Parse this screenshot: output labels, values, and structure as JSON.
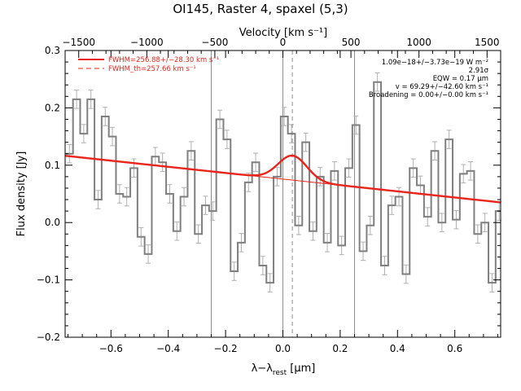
{
  "chart_data": {
    "type": "line",
    "title": "OI145, Raster 4, spaxel (5,3)",
    "xlabel": "λ-λ_rest [μm]",
    "xlabel_main": "λ−λ",
    "xlabel_sub": "rest",
    "xlabel_unit": " [μm]",
    "ylabel": "Flux density [Jy]",
    "top_axis_label": "Velocity [km s⁻¹]",
    "xlim": [
      -0.76,
      0.76
    ],
    "ylim": [
      -0.2,
      0.3
    ],
    "top_xlim": [
      -1600,
      1600
    ],
    "x_ticks": [
      -0.6,
      -0.4,
      -0.2,
      0.0,
      0.2,
      0.4,
      0.6
    ],
    "x_tick_labels": [
      "−0.6",
      "−0.4",
      "−0.2",
      "0.0",
      "0.2",
      "0.4",
      "0.6"
    ],
    "y_ticks": [
      -0.2,
      -0.1,
      0.0,
      0.1,
      0.2,
      0.3
    ],
    "y_tick_labels": [
      "−0.2",
      "−0.1",
      "0.0",
      "0.1",
      "0.2",
      "0.3"
    ],
    "top_ticks": [
      -1500,
      -1000,
      -500,
      0,
      500,
      1000,
      1500
    ],
    "top_tick_labels": [
      "−1500",
      "−1000",
      "−500",
      "0",
      "500",
      "1000",
      "1500"
    ],
    "vertical_lines_solid": [
      -0.25,
      0.0,
      0.25
    ],
    "vertical_line_dashed": 0.033,
    "legend": [
      {
        "text": "FWHM=256.88+/−28.30 km s⁻¹",
        "style": "solid"
      },
      {
        "text": "FWHM_th=257.66 km s⁻¹",
        "style": "dashed"
      }
    ],
    "annotations": [
      "1.09e−18+/−3.73e−19 W m⁻²",
      "2.91σ",
      "EQW = 0.17 μm",
      "v = 69.29+/−42.60 km s⁻¹",
      "Broadening = 0.00+/−0.00 km s⁻¹"
    ],
    "series": [
      {
        "name": "spectrum",
        "color": "#7f7f7f",
        "style": "steps",
        "x": [
          -0.745,
          -0.72,
          -0.695,
          -0.67,
          -0.645,
          -0.62,
          -0.595,
          -0.57,
          -0.545,
          -0.52,
          -0.495,
          -0.47,
          -0.445,
          -0.42,
          -0.395,
          -0.37,
          -0.345,
          -0.32,
          -0.295,
          -0.27,
          -0.245,
          -0.22,
          -0.195,
          -0.17,
          -0.145,
          -0.12,
          -0.095,
          -0.07,
          -0.045,
          -0.02,
          0.005,
          0.03,
          0.055,
          0.08,
          0.105,
          0.13,
          0.155,
          0.18,
          0.205,
          0.23,
          0.255,
          0.28,
          0.305,
          0.33,
          0.355,
          0.38,
          0.405,
          0.43,
          0.455,
          0.48,
          0.505,
          0.53,
          0.555,
          0.58,
          0.605,
          0.63,
          0.655,
          0.68,
          0.705,
          0.73,
          0.755
        ],
        "y": [
          0.12,
          0.215,
          0.155,
          0.215,
          0.04,
          0.185,
          0.15,
          0.05,
          0.045,
          0.095,
          -0.025,
          -0.055,
          0.115,
          0.105,
          0.05,
          -0.015,
          0.045,
          0.125,
          -0.02,
          0.03,
          0.02,
          0.18,
          0.145,
          -0.085,
          -0.035,
          0.07,
          0.105,
          -0.075,
          -0.105,
          0.08,
          0.185,
          0.155,
          -0.005,
          0.14,
          -0.015,
          0.08,
          -0.035,
          0.09,
          -0.04,
          0.095,
          0.17,
          -0.05,
          -0.005,
          0.245,
          -0.075,
          0.03,
          0.045,
          -0.09,
          0.095,
          0.065,
          0.01,
          0.125,
          0.0,
          0.145,
          0.005,
          0.085,
          0.09,
          -0.02,
          0.0,
          -0.105,
          0.02
        ]
      },
      {
        "name": "FWHM=256.88+/−28.30 km s⁻¹",
        "color": "#e8251c",
        "style": "solid",
        "continuum": {
          "c0": 0.0758,
          "slope": -0.0535
        },
        "gaussian": {
          "amplitude": 0.0427,
          "center": 0.034,
          "sigma": 0.05
        }
      }
    ]
  }
}
